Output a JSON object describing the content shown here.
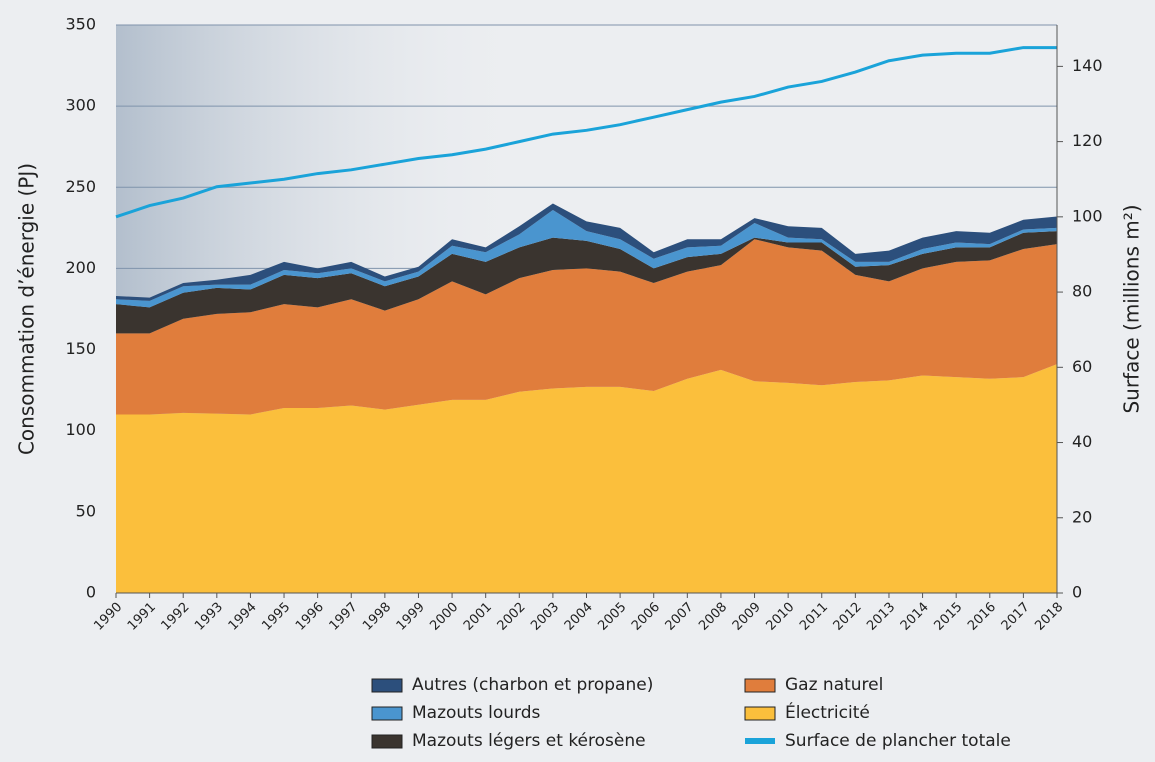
{
  "chart_data": {
    "type": "area",
    "categories": [
      "1990",
      "1991",
      "1992",
      "1993",
      "1994",
      "1995",
      "1996",
      "1997",
      "1998",
      "1999",
      "2000",
      "2001",
      "2002",
      "2003",
      "2004",
      "2005",
      "2006",
      "2007",
      "2008",
      "2009",
      "2010",
      "2011",
      "2012",
      "2013",
      "2014",
      "2015",
      "2016",
      "2017",
      "2018"
    ],
    "y_label": "Consommation d’énergie (PJ)",
    "y2_label": "Surface (millions m²)",
    "ylim": [
      0,
      350
    ],
    "yticks": [
      0,
      50,
      100,
      150,
      200,
      250,
      300,
      350
    ],
    "y2lim": [
      0,
      151
    ],
    "y2ticks": [
      0,
      20,
      40,
      60,
      80,
      100,
      120,
      140
    ],
    "grid": true,
    "stacked": true,
    "series": [
      {
        "name": "Électricité",
        "color": "#fbbf3c",
        "values": [
          110,
          110,
          111,
          110.5,
          110,
          114,
          114,
          115.5,
          113,
          116,
          119,
          119,
          124,
          126,
          127,
          127,
          124.5,
          132,
          137.5,
          130.5,
          129.5,
          128,
          130,
          131,
          134,
          133,
          132,
          133,
          141
        ]
      },
      {
        "name": "Gaz naturel",
        "color": "#e07d3c",
        "values": [
          50,
          50,
          58,
          61.5,
          63,
          64,
          62,
          65.5,
          61,
          65,
          73,
          65,
          70,
          73,
          73,
          71,
          66.5,
          66,
          64.5,
          87.5,
          83.5,
          83,
          66,
          61,
          66,
          71,
          73,
          79,
          74
        ]
      },
      {
        "name": "Mazouts légers et kérosène",
        "color": "#3a342f",
        "values": [
          18,
          16,
          16,
          16,
          14,
          18,
          18,
          16,
          15,
          14,
          17,
          20,
          19,
          20,
          17,
          14,
          9,
          9,
          7,
          1,
          3,
          5,
          5,
          10,
          9,
          9,
          8,
          10,
          8
        ]
      },
      {
        "name": "Mazouts lourds",
        "color": "#4a95cf",
        "values": [
          3,
          4,
          4,
          2,
          3,
          3,
          3,
          3,
          3,
          3,
          5,
          6,
          8,
          17,
          6,
          6,
          6,
          6,
          5,
          9,
          3,
          2,
          3,
          2,
          3,
          3,
          2,
          2,
          2
        ]
      },
      {
        "name": "Autres (charbon et propane)",
        "color": "#2c4f7c",
        "values": [
          2,
          2,
          2,
          3,
          6,
          5,
          3,
          4,
          3,
          3,
          4,
          3,
          5,
          4,
          6,
          7,
          4,
          5,
          4,
          3,
          7,
          7,
          5,
          7,
          7,
          7,
          7,
          6,
          7
        ]
      },
      {
        "name": "Surface de plancher totale",
        "color": "#1aa3d9",
        "axis": "y2",
        "values": [
          100,
          103,
          105,
          108,
          109,
          110,
          111.5,
          112.5,
          114,
          115.5,
          116.5,
          118,
          120,
          122,
          123,
          124.5,
          126.5,
          128.5,
          130.5,
          132,
          134.5,
          136,
          138.5,
          141.5,
          143,
          143.5,
          143.5,
          145,
          145
        ]
      }
    ]
  }
}
